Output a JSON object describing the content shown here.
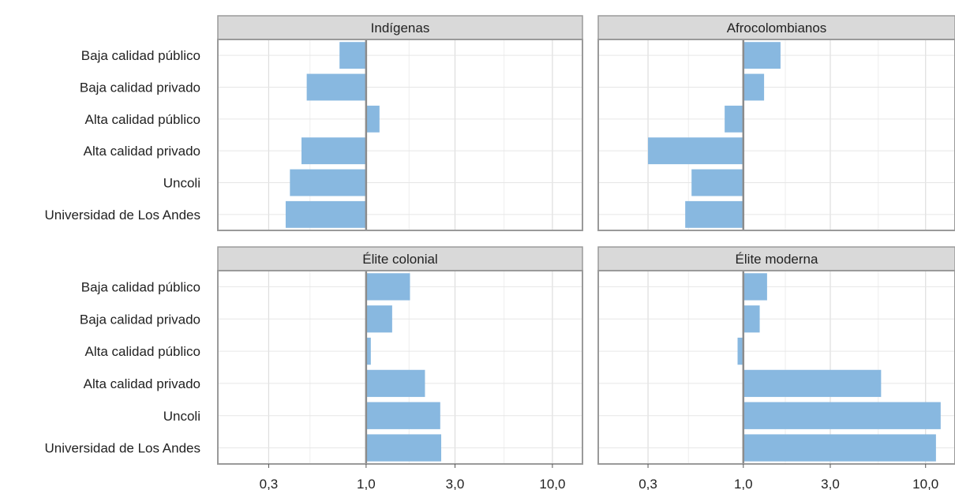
{
  "chart_data": {
    "type": "bar",
    "orientation": "horizontal",
    "x_scale": "log",
    "reference_line": 1.0,
    "categories": [
      "Baja calidad público",
      "Baja calidad privado",
      "Alta calidad público",
      "Alta calidad privado",
      "Uncoli",
      "Universidad de Los Andes"
    ],
    "x_ticks": [
      {
        "value": 0.3,
        "label": "0,3"
      },
      {
        "value": 1.0,
        "label": "1,0"
      },
      {
        "value": 3.0,
        "label": "3,0"
      },
      {
        "value": 10.0,
        "label": "10,0"
      }
    ],
    "x_minor_ticks": [
      0.5,
      1.7,
      5.5
    ],
    "xlim": [
      0.16,
      14.5
    ],
    "grid": true,
    "bar_color": "#88b8e0",
    "panels": [
      {
        "title": "Indígenas",
        "values": [
          0.72,
          0.48,
          1.18,
          0.45,
          0.39,
          0.37
        ]
      },
      {
        "title": "Afrocolombianos",
        "values": [
          1.6,
          1.3,
          0.79,
          0.3,
          0.52,
          0.48
        ]
      },
      {
        "title": "Élite colonial",
        "values": [
          1.72,
          1.38,
          1.06,
          2.07,
          2.5,
          2.53
        ]
      },
      {
        "title": "Élite moderna",
        "values": [
          1.35,
          1.23,
          0.93,
          5.7,
          12.1,
          11.4
        ]
      }
    ]
  }
}
